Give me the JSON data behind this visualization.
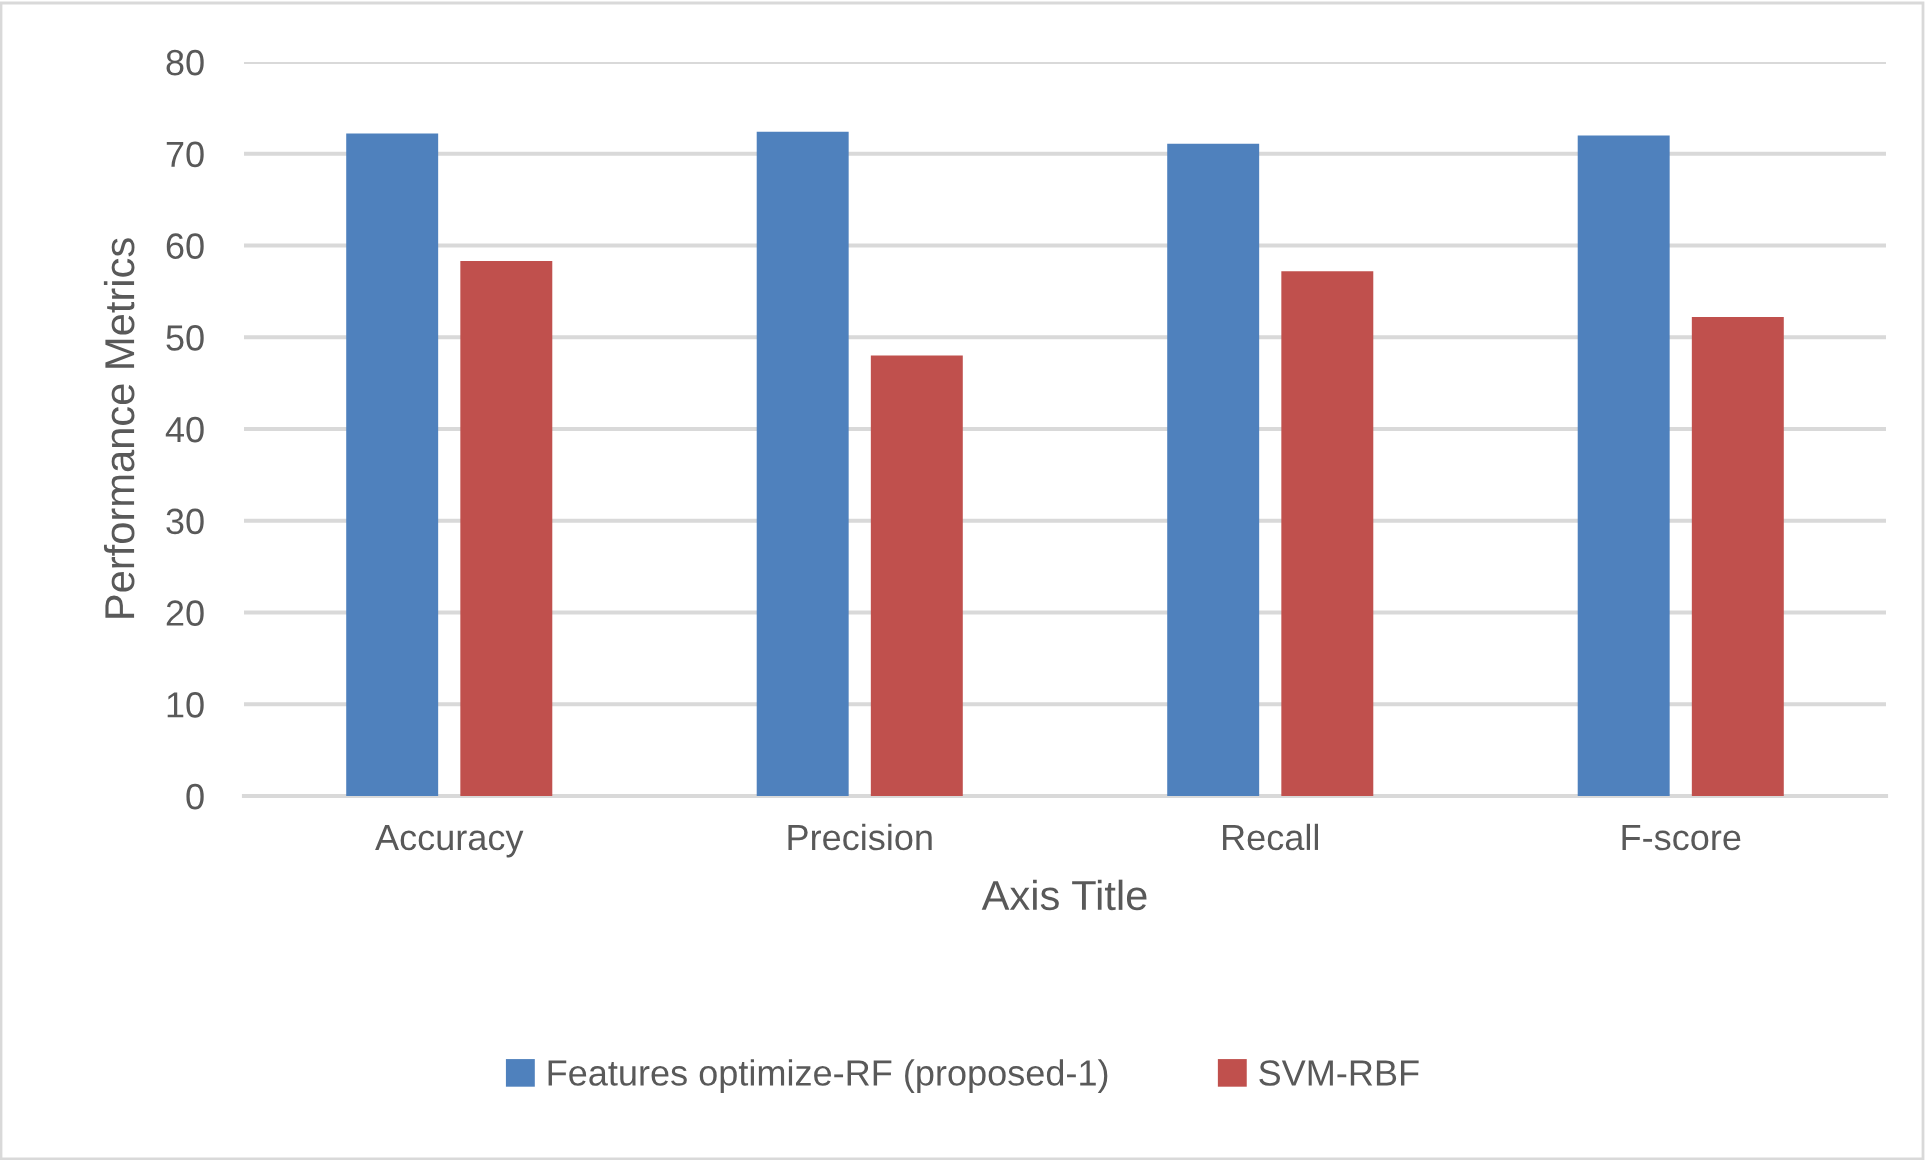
{
  "chart_data": {
    "type": "bar",
    "categories": [
      "Accuracy",
      "Precision",
      "Recall",
      "F-score"
    ],
    "series": [
      {
        "name": "Features optimize-RF (proposed-1)",
        "color": "#4f81bd",
        "values": [
          72.2,
          72.4,
          71.1,
          72.0
        ]
      },
      {
        "name": "SVM-RBF",
        "color": "#c0504d",
        "values": [
          58.3,
          48.0,
          57.2,
          52.2
        ]
      }
    ],
    "xlabel": "Axis Title",
    "ylabel": "Performance Metrics",
    "ylim": [
      0,
      80
    ],
    "yticks": [
      0,
      10,
      20,
      30,
      40,
      50,
      60,
      70,
      80
    ],
    "grid": "y",
    "legend": "bottom"
  }
}
